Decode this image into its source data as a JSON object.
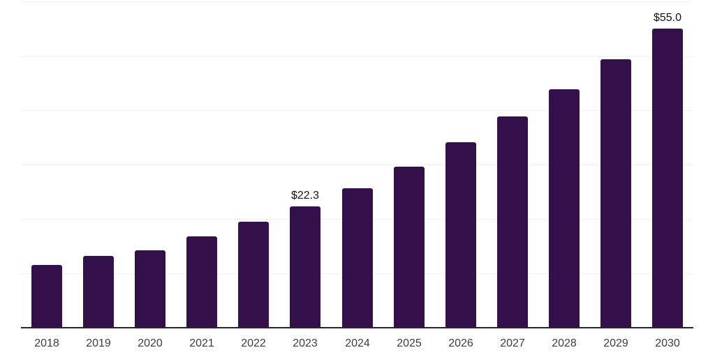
{
  "colors": {
    "background": "#ffffff",
    "bar_fill": "#34104A",
    "gridline": "#f1f1f1",
    "axis_line": "#262626",
    "year_label_text": "#3c3c3c",
    "value_label_text": "#111111"
  },
  "chart_data": {
    "type": "bar",
    "categories": [
      "2018",
      "2019",
      "2020",
      "2021",
      "2022",
      "2023",
      "2024",
      "2025",
      "2026",
      "2027",
      "2028",
      "2029",
      "2030"
    ],
    "values": [
      11.6,
      13.2,
      14.2,
      16.8,
      19.5,
      22.3,
      25.7,
      29.6,
      34.1,
      38.8,
      43.9,
      49.4,
      55.0
    ],
    "data_labels": [
      "",
      "",
      "",
      "",
      "",
      "$22.3",
      "",
      "",
      "",
      "",
      "",
      "",
      "$55.0"
    ],
    "title": "",
    "xlabel": "",
    "ylabel": "",
    "ylim": [
      0,
      60
    ],
    "gridline_values": [
      10,
      20,
      30,
      40,
      50,
      60
    ],
    "grid": "horizontal-only",
    "y_axis_labels_shown": false,
    "legend": "none",
    "bar_color": "#34104A"
  }
}
